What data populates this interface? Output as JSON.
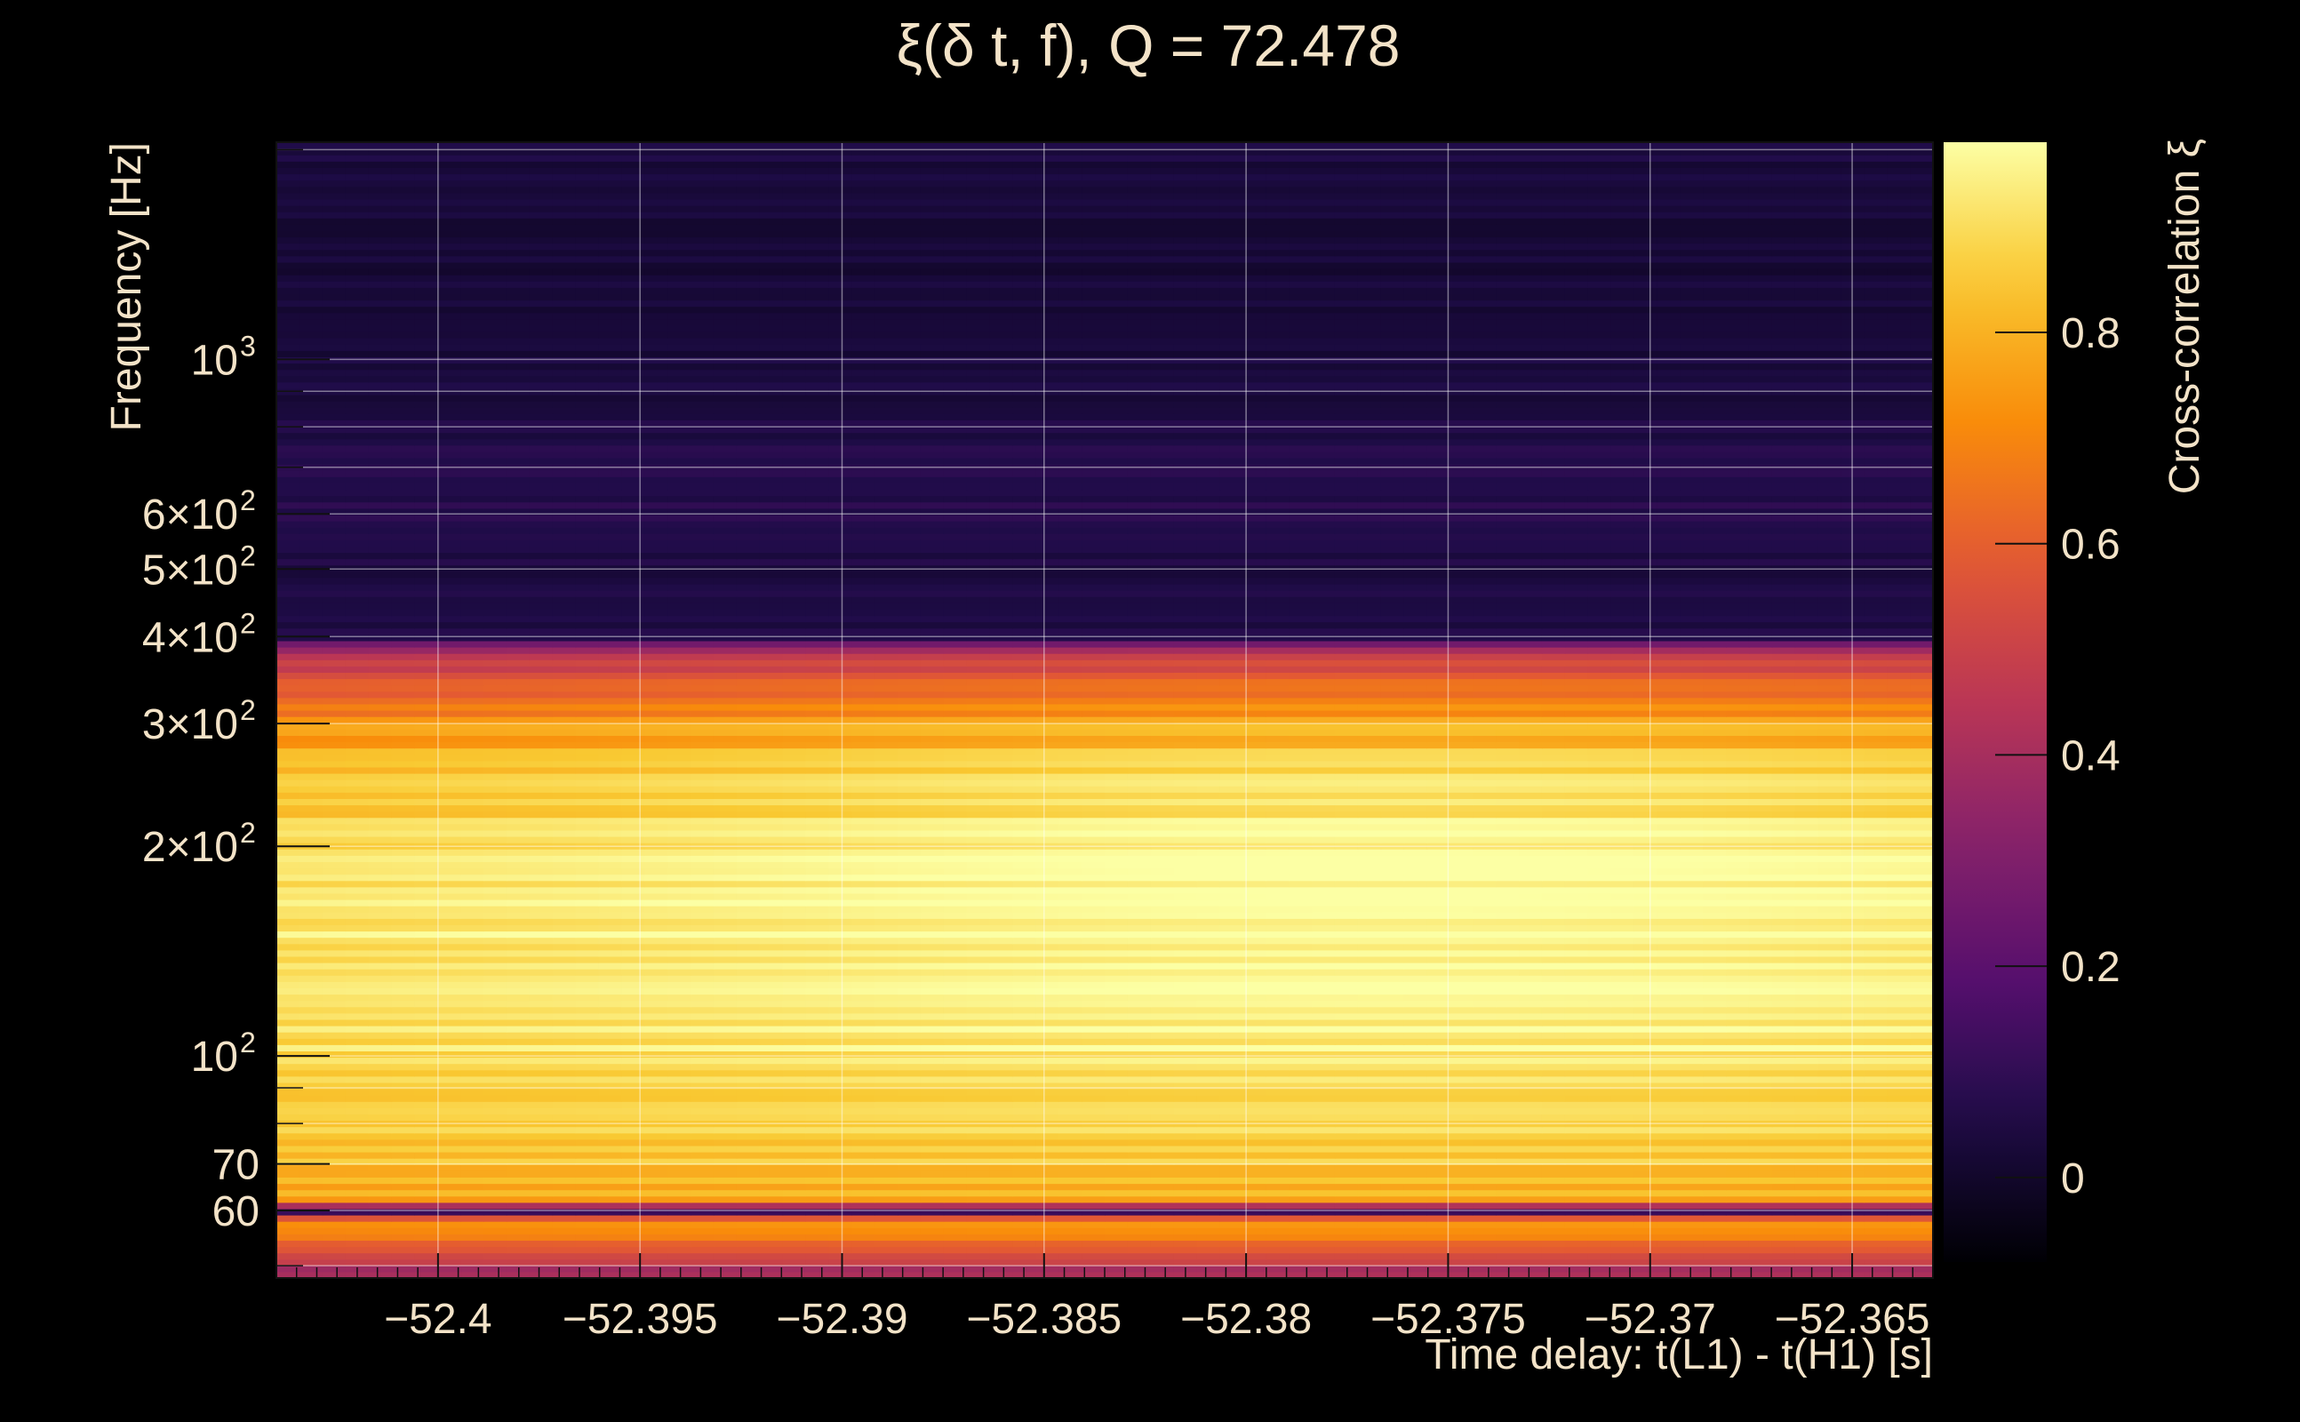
{
  "chart_data": {
    "type": "heatmap",
    "title": "ξ(δ t, f), Q = 72.478",
    "xlabel": "Time delay: t(L1) - t(H1) [s]",
    "ylabel": "Frequency [Hz]",
    "colorbar_label": "Cross-correlation ξ",
    "xlim": [
      -52.404,
      -52.363
    ],
    "ylim": [
      48,
      2050
    ],
    "yscale": "log",
    "zlim": [
      -0.08,
      0.98
    ],
    "colormap": "inferno",
    "grid": true,
    "x_ticks": [
      {
        "value": -52.4,
        "label": "−52.4"
      },
      {
        "value": -52.395,
        "label": "−52.395"
      },
      {
        "value": -52.39,
        "label": "−52.39"
      },
      {
        "value": -52.385,
        "label": "−52.385"
      },
      {
        "value": -52.38,
        "label": "−52.38"
      },
      {
        "value": -52.375,
        "label": "−52.375"
      },
      {
        "value": -52.37,
        "label": "−52.37"
      },
      {
        "value": -52.365,
        "label": "−52.365"
      }
    ],
    "y_ticks": [
      {
        "value": 60,
        "label": "60"
      },
      {
        "value": 70,
        "label": "70"
      },
      {
        "value": 100,
        "label": "10",
        "exp": "2"
      },
      {
        "value": 200,
        "label": "2×10",
        "exp": "2"
      },
      {
        "value": 300,
        "label": "3×10",
        "exp": "2"
      },
      {
        "value": 400,
        "label": "4×10",
        "exp": "2"
      },
      {
        "value": 500,
        "label": "5×10",
        "exp": "2"
      },
      {
        "value": 600,
        "label": "6×10",
        "exp": "2"
      },
      {
        "value": 1000,
        "label": "10",
        "exp": "3"
      }
    ],
    "y_minor_ticks": [
      50,
      80,
      90,
      700,
      800,
      900,
      2000
    ],
    "colorbar_ticks": [
      {
        "value": 0,
        "label": "0"
      },
      {
        "value": 0.2,
        "label": "0.2"
      },
      {
        "value": 0.4,
        "label": "0.4"
      },
      {
        "value": 0.6,
        "label": "0.6"
      },
      {
        "value": 0.8,
        "label": "0.8"
      }
    ],
    "frequency_profile": [
      {
        "freq": 50,
        "xi": 0.45
      },
      {
        "freq": 55,
        "xi": 0.65
      },
      {
        "freq": 58,
        "xi": 0.72
      },
      {
        "freq": 60,
        "xi": 0.02
      },
      {
        "freq": 62,
        "xi": 0.78
      },
      {
        "freq": 70,
        "xi": 0.84
      },
      {
        "freq": 80,
        "xi": 0.88
      },
      {
        "freq": 100,
        "xi": 0.91
      },
      {
        "freq": 130,
        "xi": 0.93
      },
      {
        "freq": 160,
        "xi": 0.93
      },
      {
        "freq": 200,
        "xi": 0.9
      },
      {
        "freq": 250,
        "xi": 0.84
      },
      {
        "freq": 300,
        "xi": 0.74
      },
      {
        "freq": 340,
        "xi": 0.58
      },
      {
        "freq": 380,
        "xi": 0.44
      },
      {
        "freq": 400,
        "xi": 0.06
      },
      {
        "freq": 500,
        "xi": 0.05
      },
      {
        "freq": 600,
        "xi": 0.08
      },
      {
        "freq": 800,
        "xi": 0.05
      },
      {
        "freq": 1000,
        "xi": 0.04
      },
      {
        "freq": 1500,
        "xi": 0.03
      },
      {
        "freq": 2050,
        "xi": 0.04
      }
    ],
    "peak": {
      "time_delay": -52.3765,
      "freq": 210,
      "xi": 0.97
    }
  }
}
